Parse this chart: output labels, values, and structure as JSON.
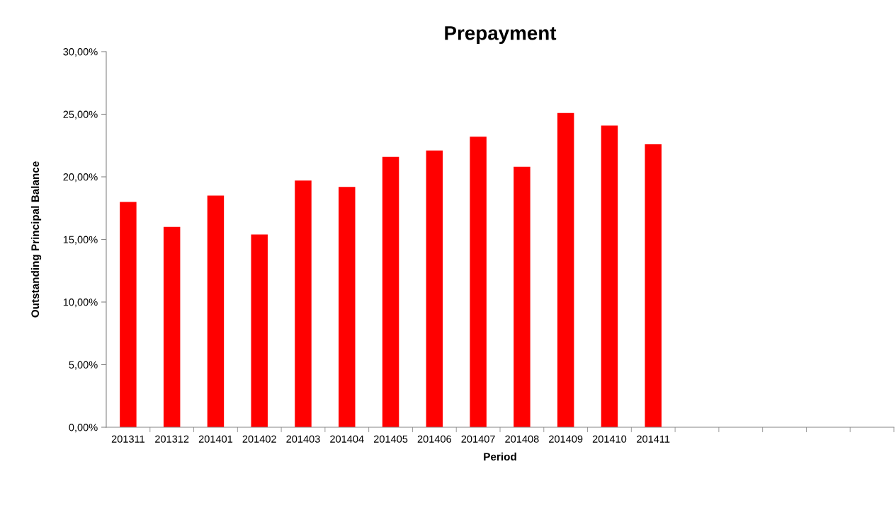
{
  "chart_data": {
    "type": "bar",
    "title": "Prepayment",
    "xlabel": "Period",
    "ylabel": "Outstanding Principal Balance",
    "categories": [
      "201311",
      "201312",
      "201401",
      "201402",
      "201403",
      "201404",
      "201405",
      "201406",
      "201407",
      "201408",
      "201409",
      "201410",
      "201411",
      null,
      null,
      null,
      null,
      null
    ],
    "values": [
      18.0,
      16.0,
      18.5,
      15.4,
      19.7,
      19.2,
      21.6,
      22.1,
      23.2,
      20.8,
      25.1,
      24.1,
      22.6,
      null,
      null,
      null,
      null,
      null
    ],
    "color": "#ff0000",
    "ylim": [
      0,
      30
    ],
    "yticks": [
      {
        "value": 0,
        "label": "0,00%"
      },
      {
        "value": 5,
        "label": "5,00%"
      },
      {
        "value": 10,
        "label": "10,00%"
      },
      {
        "value": 15,
        "label": "15,00%"
      },
      {
        "value": 20,
        "label": "20,00%"
      },
      {
        "value": 25,
        "label": "25,00%"
      },
      {
        "value": 30,
        "label": "30,00%"
      }
    ],
    "grid": false,
    "legend": false
  }
}
